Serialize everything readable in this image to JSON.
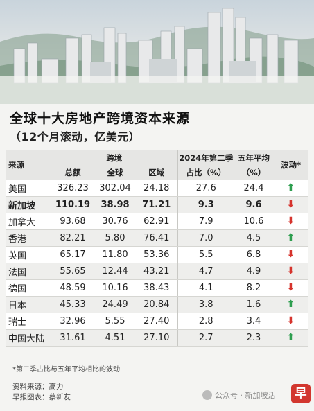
{
  "title": "全球十大房地产跨境资本来源",
  "subtitle": "（12个月滚动，亿美元）",
  "headers": {
    "source": "来源",
    "cross_border": "跨境",
    "total": "总额",
    "global": "全球",
    "regional": "区域",
    "q2_share_line1": "2024年第二季",
    "q2_share_line2": "占比（%）",
    "five_year_line1": "五年平均",
    "five_year_line2": "（%）",
    "fluctuation": "波动*"
  },
  "colors": {
    "up": "#2e9e4f",
    "down": "#d6332c"
  },
  "rows": [
    {
      "name": "美国",
      "total": "326.23",
      "global": "302.04",
      "regional": "24.18",
      "q2": "27.6",
      "avg5": "24.4",
      "trend": "up",
      "bold": false
    },
    {
      "name": "新加坡",
      "total": "110.19",
      "global": "38.98",
      "regional": "71.21",
      "q2": "9.3",
      "avg5": "9.6",
      "trend": "down",
      "bold": true
    },
    {
      "name": "加拿大",
      "total": "93.68",
      "global": "30.76",
      "regional": "62.91",
      "q2": "7.9",
      "avg5": "10.6",
      "trend": "down",
      "bold": false
    },
    {
      "name": "香港",
      "total": "82.21",
      "global": "5.80",
      "regional": "76.41",
      "q2": "7.0",
      "avg5": "4.5",
      "trend": "up",
      "bold": false
    },
    {
      "name": "英国",
      "total": "65.17",
      "global": "11.80",
      "regional": "53.36",
      "q2": "5.5",
      "avg5": "6.8",
      "trend": "down",
      "bold": false
    },
    {
      "name": "法国",
      "total": "55.65",
      "global": "12.44",
      "regional": "43.21",
      "q2": "4.7",
      "avg5": "4.9",
      "trend": "down",
      "bold": false
    },
    {
      "name": "德国",
      "total": "48.59",
      "global": "10.16",
      "regional": "38.43",
      "q2": "4.1",
      "avg5": "8.2",
      "trend": "down",
      "bold": false
    },
    {
      "name": "日本",
      "total": "45.33",
      "global": "24.49",
      "regional": "20.84",
      "q2": "3.8",
      "avg5": "1.6",
      "trend": "up",
      "bold": false
    },
    {
      "name": "瑞士",
      "total": "32.96",
      "global": "5.55",
      "regional": "27.40",
      "q2": "2.8",
      "avg5": "3.4",
      "trend": "down",
      "bold": false
    },
    {
      "name": "中国大陆",
      "total": "31.61",
      "global": "4.51",
      "regional": "27.10",
      "q2": "2.7",
      "avg5": "2.3",
      "trend": "up",
      "bold": false
    }
  ],
  "note": "*第二季占比与五年平均相比的波动",
  "source_line": "资料来源：高力",
  "chart_credit": "早报图表：蔡新友",
  "watermark": "公众号 · 新加坡活",
  "logo_char": "早"
}
